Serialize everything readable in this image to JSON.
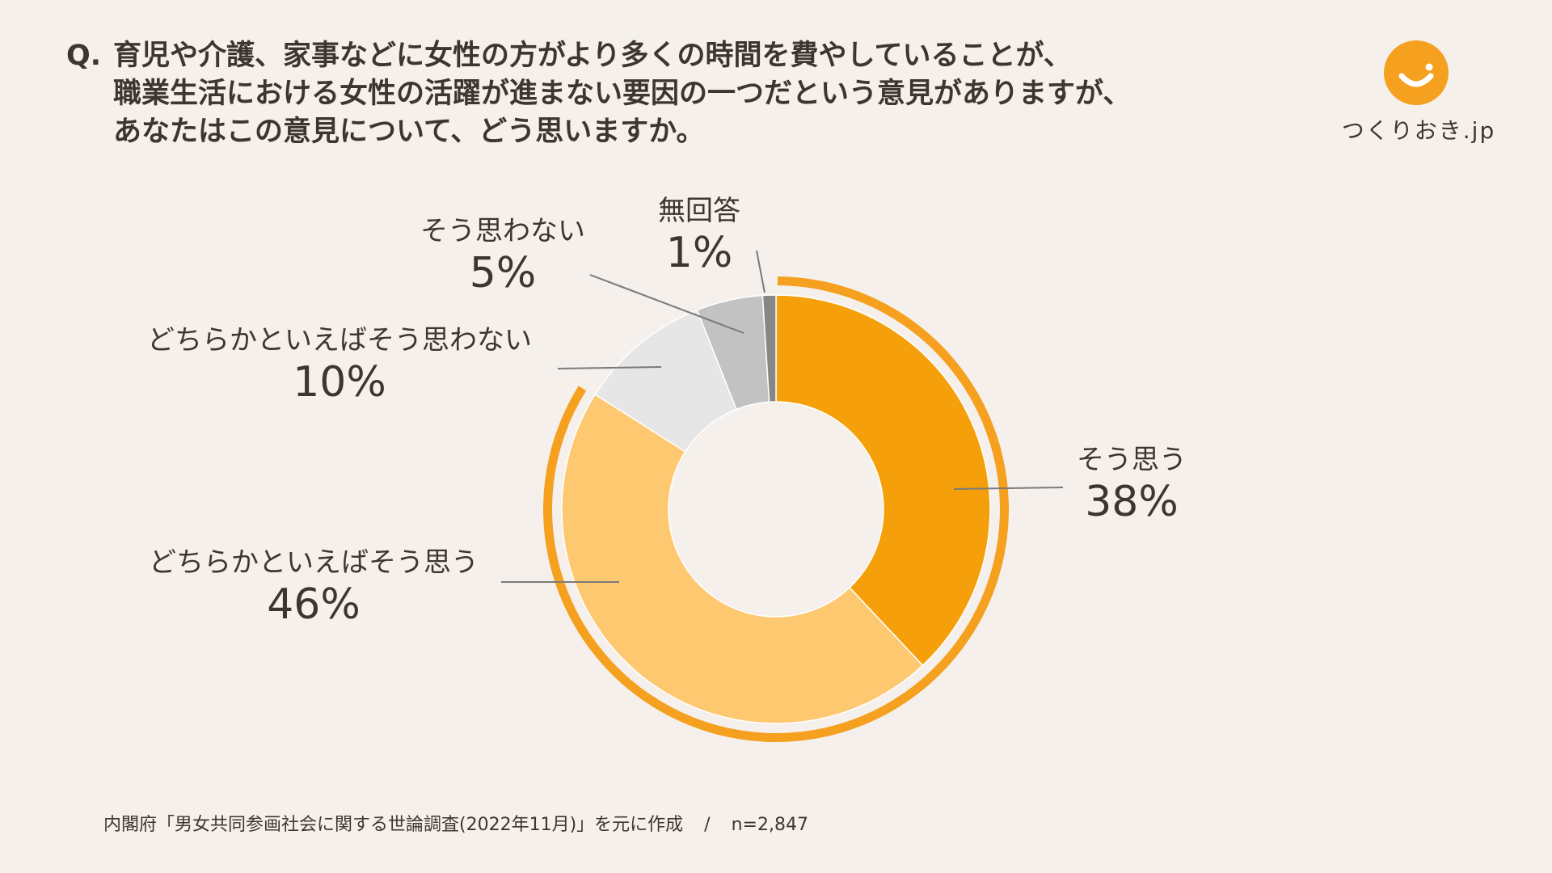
{
  "question": {
    "prefix": "Q.",
    "lines": [
      "育児や介護、家事などに女性の方がより多くの時間を費やしていることが、",
      "職業生活における女性の活躍が進まない要因の一つだという意見がありますが、",
      "あなたはこの意見について、どう思いますか。"
    ]
  },
  "logo": {
    "text": "つくりおき.jp"
  },
  "colors": {
    "background": "#f5f0eb",
    "text": "#3d3530",
    "accent": "#f5a01f",
    "slice_yes": "#f5a00a",
    "slice_somewhat_yes": "#fdc870",
    "slice_somewhat_no": "#e6e6e6",
    "slice_no": "#c2c2c2",
    "slice_na": "#878787",
    "leader": "#7a7a7a"
  },
  "chart_data": {
    "type": "pie",
    "donut": true,
    "slices": [
      {
        "label": "そう思う",
        "value": 38,
        "value_label": "38%",
        "color": "#f5a00a"
      },
      {
        "label": "どちらかといえばそう思う",
        "value": 46,
        "value_label": "46%",
        "color": "#fdc870"
      },
      {
        "label": "どちらかといえばそう思わない",
        "value": 10,
        "value_label": "10%",
        "color": "#e6e6e6"
      },
      {
        "label": "そう思わない",
        "value": 5,
        "value_label": "5%",
        "color": "#c2c2c2"
      },
      {
        "label": "無回答",
        "value": 1,
        "value_label": "1%",
        "color": "#878787"
      }
    ],
    "highlight_arc_over": [
      "そう思う",
      "どちらかといえばそう思う"
    ]
  },
  "footer": {
    "source": "内閣府「男女共同参画社会に関する世論調査(2022年11月)」を元に作成",
    "separator": "/",
    "sample": "n=2,847"
  }
}
